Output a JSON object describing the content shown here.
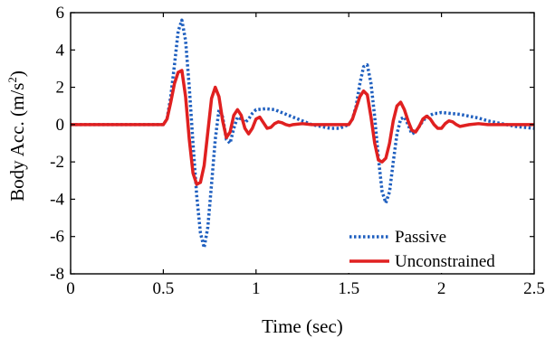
{
  "chart_data": {
    "type": "line",
    "xlabel": "Time (sec)",
    "ylabel_main": "Body Acc. (m/s",
    "ylabel_sup": "2",
    "ylabel_close": ")",
    "xlim": [
      0,
      2.5
    ],
    "ylim": [
      -8,
      6
    ],
    "xticks": [
      0,
      0.5,
      1,
      1.5,
      2,
      2.5
    ],
    "xtick_labels": [
      "0",
      "0.5",
      "1",
      "1.5",
      "2",
      "2.5"
    ],
    "yticks": [
      -8,
      -6,
      -4,
      -2,
      0,
      2,
      4,
      6
    ],
    "ytick_labels": [
      "-8",
      "-6",
      "-4",
      "-2",
      "0",
      "2",
      "4",
      "6"
    ],
    "grid": false,
    "legend_position": "bottom-right",
    "series": [
      {
        "name": "Passive",
        "color": "#1f5fbf",
        "style": "dotted",
        "x": [
          0,
          0.5,
          0.52,
          0.54,
          0.56,
          0.58,
          0.6,
          0.62,
          0.64,
          0.66,
          0.68,
          0.7,
          0.72,
          0.74,
          0.76,
          0.78,
          0.8,
          0.82,
          0.84,
          0.86,
          0.88,
          0.9,
          0.92,
          0.94,
          0.96,
          0.98,
          1.0,
          1.05,
          1.1,
          1.15,
          1.2,
          1.25,
          1.3,
          1.35,
          1.4,
          1.45,
          1.5,
          1.52,
          1.54,
          1.56,
          1.58,
          1.6,
          1.62,
          1.64,
          1.66,
          1.68,
          1.7,
          1.72,
          1.74,
          1.76,
          1.78,
          1.8,
          1.82,
          1.84,
          1.86,
          1.88,
          1.9,
          1.92,
          1.94,
          1.96,
          1.98,
          2.0,
          2.05,
          2.1,
          2.15,
          2.2,
          2.25,
          2.3,
          2.35,
          2.4,
          2.45,
          2.5
        ],
        "y": [
          0,
          0,
          0.3,
          1.5,
          3.2,
          5.0,
          5.6,
          4.5,
          2.0,
          -1.0,
          -3.8,
          -5.8,
          -6.6,
          -5.5,
          -3.2,
          -0.8,
          0.8,
          0.4,
          -0.8,
          -1.0,
          -0.2,
          0.4,
          0.3,
          0.1,
          0.3,
          0.6,
          0.8,
          0.85,
          0.8,
          0.6,
          0.4,
          0.2,
          0.0,
          -0.1,
          -0.2,
          -0.2,
          0,
          0.3,
          1.0,
          2.2,
          3.1,
          3.2,
          2.2,
          0.4,
          -1.8,
          -3.6,
          -4.2,
          -3.6,
          -2.0,
          -0.5,
          0.3,
          0.4,
          0.0,
          -0.5,
          -0.4,
          -0.1,
          0.2,
          0.4,
          0.5,
          0.6,
          0.6,
          0.65,
          0.6,
          0.55,
          0.45,
          0.35,
          0.2,
          0.1,
          0.0,
          -0.1,
          -0.15,
          -0.2
        ]
      },
      {
        "name": "Unconstrained",
        "color": "#e02020",
        "style": "solid",
        "x": [
          0,
          0.5,
          0.52,
          0.54,
          0.56,
          0.58,
          0.6,
          0.62,
          0.64,
          0.66,
          0.68,
          0.7,
          0.72,
          0.74,
          0.76,
          0.78,
          0.8,
          0.82,
          0.84,
          0.86,
          0.88,
          0.9,
          0.92,
          0.94,
          0.96,
          0.98,
          1.0,
          1.02,
          1.04,
          1.06,
          1.08,
          1.1,
          1.12,
          1.14,
          1.16,
          1.18,
          1.2,
          1.25,
          1.3,
          1.35,
          1.4,
          1.45,
          1.5,
          1.52,
          1.54,
          1.56,
          1.58,
          1.6,
          1.62,
          1.64,
          1.66,
          1.68,
          1.7,
          1.72,
          1.74,
          1.76,
          1.78,
          1.8,
          1.82,
          1.84,
          1.86,
          1.88,
          1.9,
          1.92,
          1.94,
          1.96,
          1.98,
          2.0,
          2.02,
          2.04,
          2.06,
          2.08,
          2.1,
          2.15,
          2.2,
          2.25,
          2.3,
          2.35,
          2.4,
          2.45,
          2.5
        ],
        "y": [
          0,
          0,
          0.3,
          1.2,
          2.2,
          2.8,
          2.9,
          1.5,
          -0.8,
          -2.6,
          -3.2,
          -3.1,
          -2.2,
          -0.4,
          1.4,
          2.0,
          1.5,
          0.2,
          -0.7,
          -0.4,
          0.5,
          0.8,
          0.5,
          -0.2,
          -0.5,
          -0.2,
          0.3,
          0.4,
          0.1,
          -0.2,
          -0.15,
          0.05,
          0.15,
          0.1,
          0.0,
          -0.05,
          0.0,
          0.05,
          0.0,
          0.0,
          0.0,
          0.0,
          0,
          0.3,
          0.9,
          1.5,
          1.8,
          1.6,
          0.4,
          -1.0,
          -1.9,
          -2.0,
          -1.8,
          -1.0,
          0.2,
          1.0,
          1.2,
          0.8,
          0.2,
          -0.3,
          -0.4,
          -0.1,
          0.3,
          0.45,
          0.3,
          0.0,
          -0.2,
          -0.2,
          0.05,
          0.2,
          0.15,
          0.0,
          -0.1,
          0.0,
          0.05,
          0.0,
          0.0,
          0.0,
          0.0,
          0.0,
          0.0
        ]
      }
    ]
  }
}
